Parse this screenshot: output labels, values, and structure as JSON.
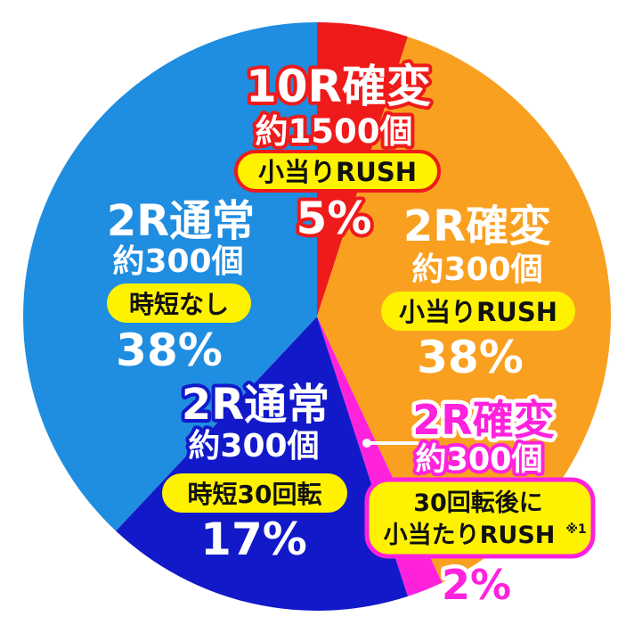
{
  "chart_data": {
    "type": "pie",
    "colors": {
      "red": "#ef1a1a",
      "orange": "#f9a020",
      "magenta": "#ff22dd",
      "navy": "#1219c9",
      "blue": "#1f8de0",
      "pill_yellow": "#fff200",
      "white": "#ffffff"
    },
    "slices": [
      {
        "title": "10R確変",
        "sub": "約1500個",
        "note": "小当りRUSH",
        "value": 5,
        "pct": "5%",
        "color": "#ef1a1a"
      },
      {
        "title": "2R確変",
        "sub": "約300個",
        "note": "小当りRUSH",
        "value": 38,
        "pct": "38%",
        "color": "#f9a020"
      },
      {
        "title": "2R確変",
        "sub": "約300個",
        "note_lines": [
          "30回転後に",
          "小当たりRUSH"
        ],
        "note_mark": "※1",
        "value": 2,
        "pct": "2%",
        "color": "#ff22dd"
      },
      {
        "title": "2R通常",
        "sub": "約300個",
        "note": "時短30回転",
        "value": 17,
        "pct": "17%",
        "color": "#1219c9"
      },
      {
        "title": "2R通常",
        "sub": "約300個",
        "note": "時短なし",
        "value": 38,
        "pct": "38%",
        "color": "#1f8de0"
      }
    ]
  }
}
